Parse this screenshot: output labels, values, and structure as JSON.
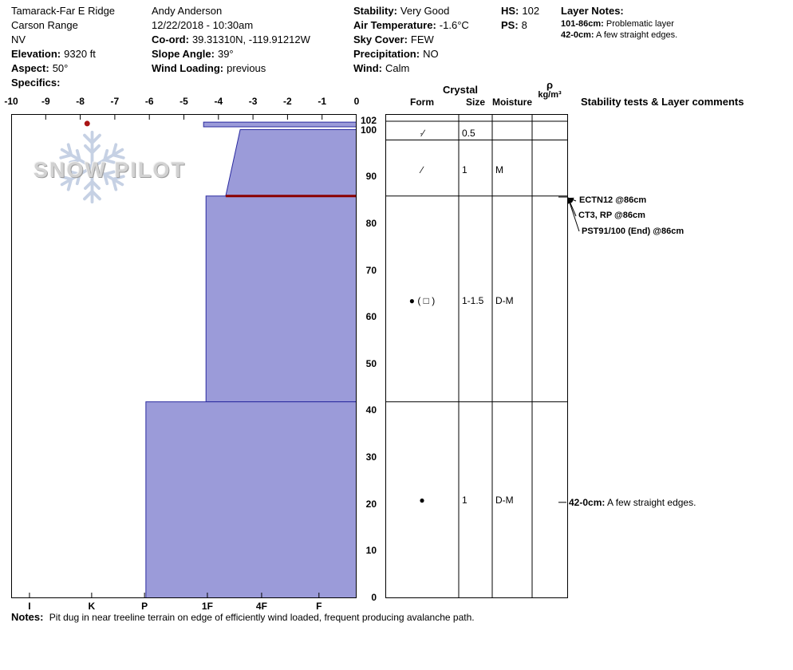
{
  "header": {
    "site": {
      "name": "Tamarack-Far E Ridge",
      "region": "Carson Range",
      "state": "NV",
      "elevation_label": "Elevation:",
      "elevation_value": "9320 ft",
      "aspect_label": "Aspect:",
      "aspect_value": "50°",
      "specifics_label": "Specifics:"
    },
    "observer": {
      "name": "Andy Anderson",
      "datetime": "12/22/2018 - 10:30am",
      "coord_label": "Co-ord:",
      "coord_value": "39.31310N, -119.91212W",
      "slope_angle_label": "Slope Angle:",
      "slope_angle_value": "39°",
      "wind_loading_label": "Wind Loading:",
      "wind_loading_value": "previous"
    },
    "conditions": {
      "stability_label": "Stability:",
      "stability_value": "Very Good",
      "air_temp_label": "Air Temperature:",
      "air_temp_value": "-1.6°C",
      "sky_label": "Sky Cover:",
      "sky_value": "FEW",
      "precip_label": "Precipitation:",
      "precip_value": "NO",
      "wind_label": "Wind:",
      "wind_value": "Calm"
    },
    "totals": {
      "hs_label": "HS:",
      "hs_value": "102",
      "ps_label": "PS:",
      "ps_value": "8"
    },
    "layer_notes": {
      "title": "Layer Notes:",
      "items": [
        {
          "range": "101-86cm:",
          "text": "Problematic layer"
        },
        {
          "range": "42-0cm:",
          "text": "A few straight edges."
        }
      ]
    }
  },
  "watermark": {
    "text": "SNOW PILOT"
  },
  "table": {
    "crystal_header": "Crystal",
    "form_header": "Form",
    "size_header": "Size",
    "moisture_header": "Moisture",
    "density_header_top": "ρ",
    "density_header_bottom": "kg/m³",
    "stability_header": "Stability tests & Layer comments"
  },
  "chart_data": {
    "type": "area",
    "title": "Snow pit hardness and temperature profile",
    "x_axis": {
      "ticks": [
        -10,
        -9,
        -8,
        -7,
        -6,
        -5,
        -4,
        -3,
        -2,
        -1,
        0
      ],
      "range": [
        -10,
        0
      ],
      "unit": "°C"
    },
    "hardness_axis": {
      "labels": [
        "I",
        "K",
        "P",
        "1F",
        "4F",
        "F"
      ],
      "positions": [
        -9.47,
        -7.67,
        -6.14,
        -4.32,
        -2.75,
        -1.09
      ]
    },
    "depth_axis": {
      "labels": [
        102,
        100,
        90,
        80,
        70,
        60,
        50,
        40,
        30,
        20,
        10,
        0
      ],
      "unit": "cm",
      "range": [
        0,
        102
      ]
    },
    "layers": [
      {
        "top_cm": 101.8,
        "bottom_cm": 100.8,
        "hardness": "1F",
        "x_left_top": -4.43,
        "x_left_bottom": -4.43
      },
      {
        "top_cm": 100.2,
        "bottom_cm": 86,
        "hardness": "4F-1F",
        "x_left_top": -3.37,
        "x_left_bottom": -3.79
      },
      {
        "top_cm": 86,
        "bottom_cm": 42,
        "hardness": "1F",
        "x_left_top": -4.36,
        "x_left_bottom": -4.36
      },
      {
        "top_cm": 42,
        "bottom_cm": 0,
        "hardness": "P",
        "x_left_top": -6.1,
        "x_left_bottom": -6.1
      }
    ],
    "failure_plane": {
      "depth_cm": 86,
      "x_left": -3.79
    },
    "temperature_profile": [
      {
        "depth_cm": 101.5,
        "temp_c": -7.8
      }
    ],
    "row_boundaries_cm": [
      102,
      98,
      86,
      42,
      0
    ],
    "crystal_rows": [
      {
        "center_cm": 99.2,
        "form": "∙∕",
        "size": "0.5",
        "moisture": ""
      },
      {
        "center_cm": 91.5,
        "form": "∕",
        "size": "1",
        "moisture": "M"
      },
      {
        "center_cm": 63.5,
        "form": "● ( □ )",
        "size": "1-1.5",
        "moisture": "D-M"
      },
      {
        "center_cm": 20.8,
        "form": "●",
        "size": "1",
        "moisture": "D-M"
      }
    ],
    "stability_tests": [
      {
        "label": "ECTN12 @86cm",
        "depth_cm": 86
      },
      {
        "label": "CT3, RP @86cm",
        "depth_cm": 86
      },
      {
        "label": "PST91/100 (End) @86cm",
        "depth_cm": 86
      }
    ],
    "layer_comment": {
      "depth_cm": 20.5,
      "range": "42-0cm:",
      "text": "A few straight edges."
    },
    "colors": {
      "layer_fill": "#9b9bd9",
      "layer_stroke": "#2a2aa0",
      "failure_line": "#8b0000",
      "temp_point": "#aa1414"
    }
  },
  "notes": {
    "label": "Notes:",
    "text": "Pit dug in near treeline terrain on edge of efficiently wind loaded, frequent producing avalanche path."
  }
}
